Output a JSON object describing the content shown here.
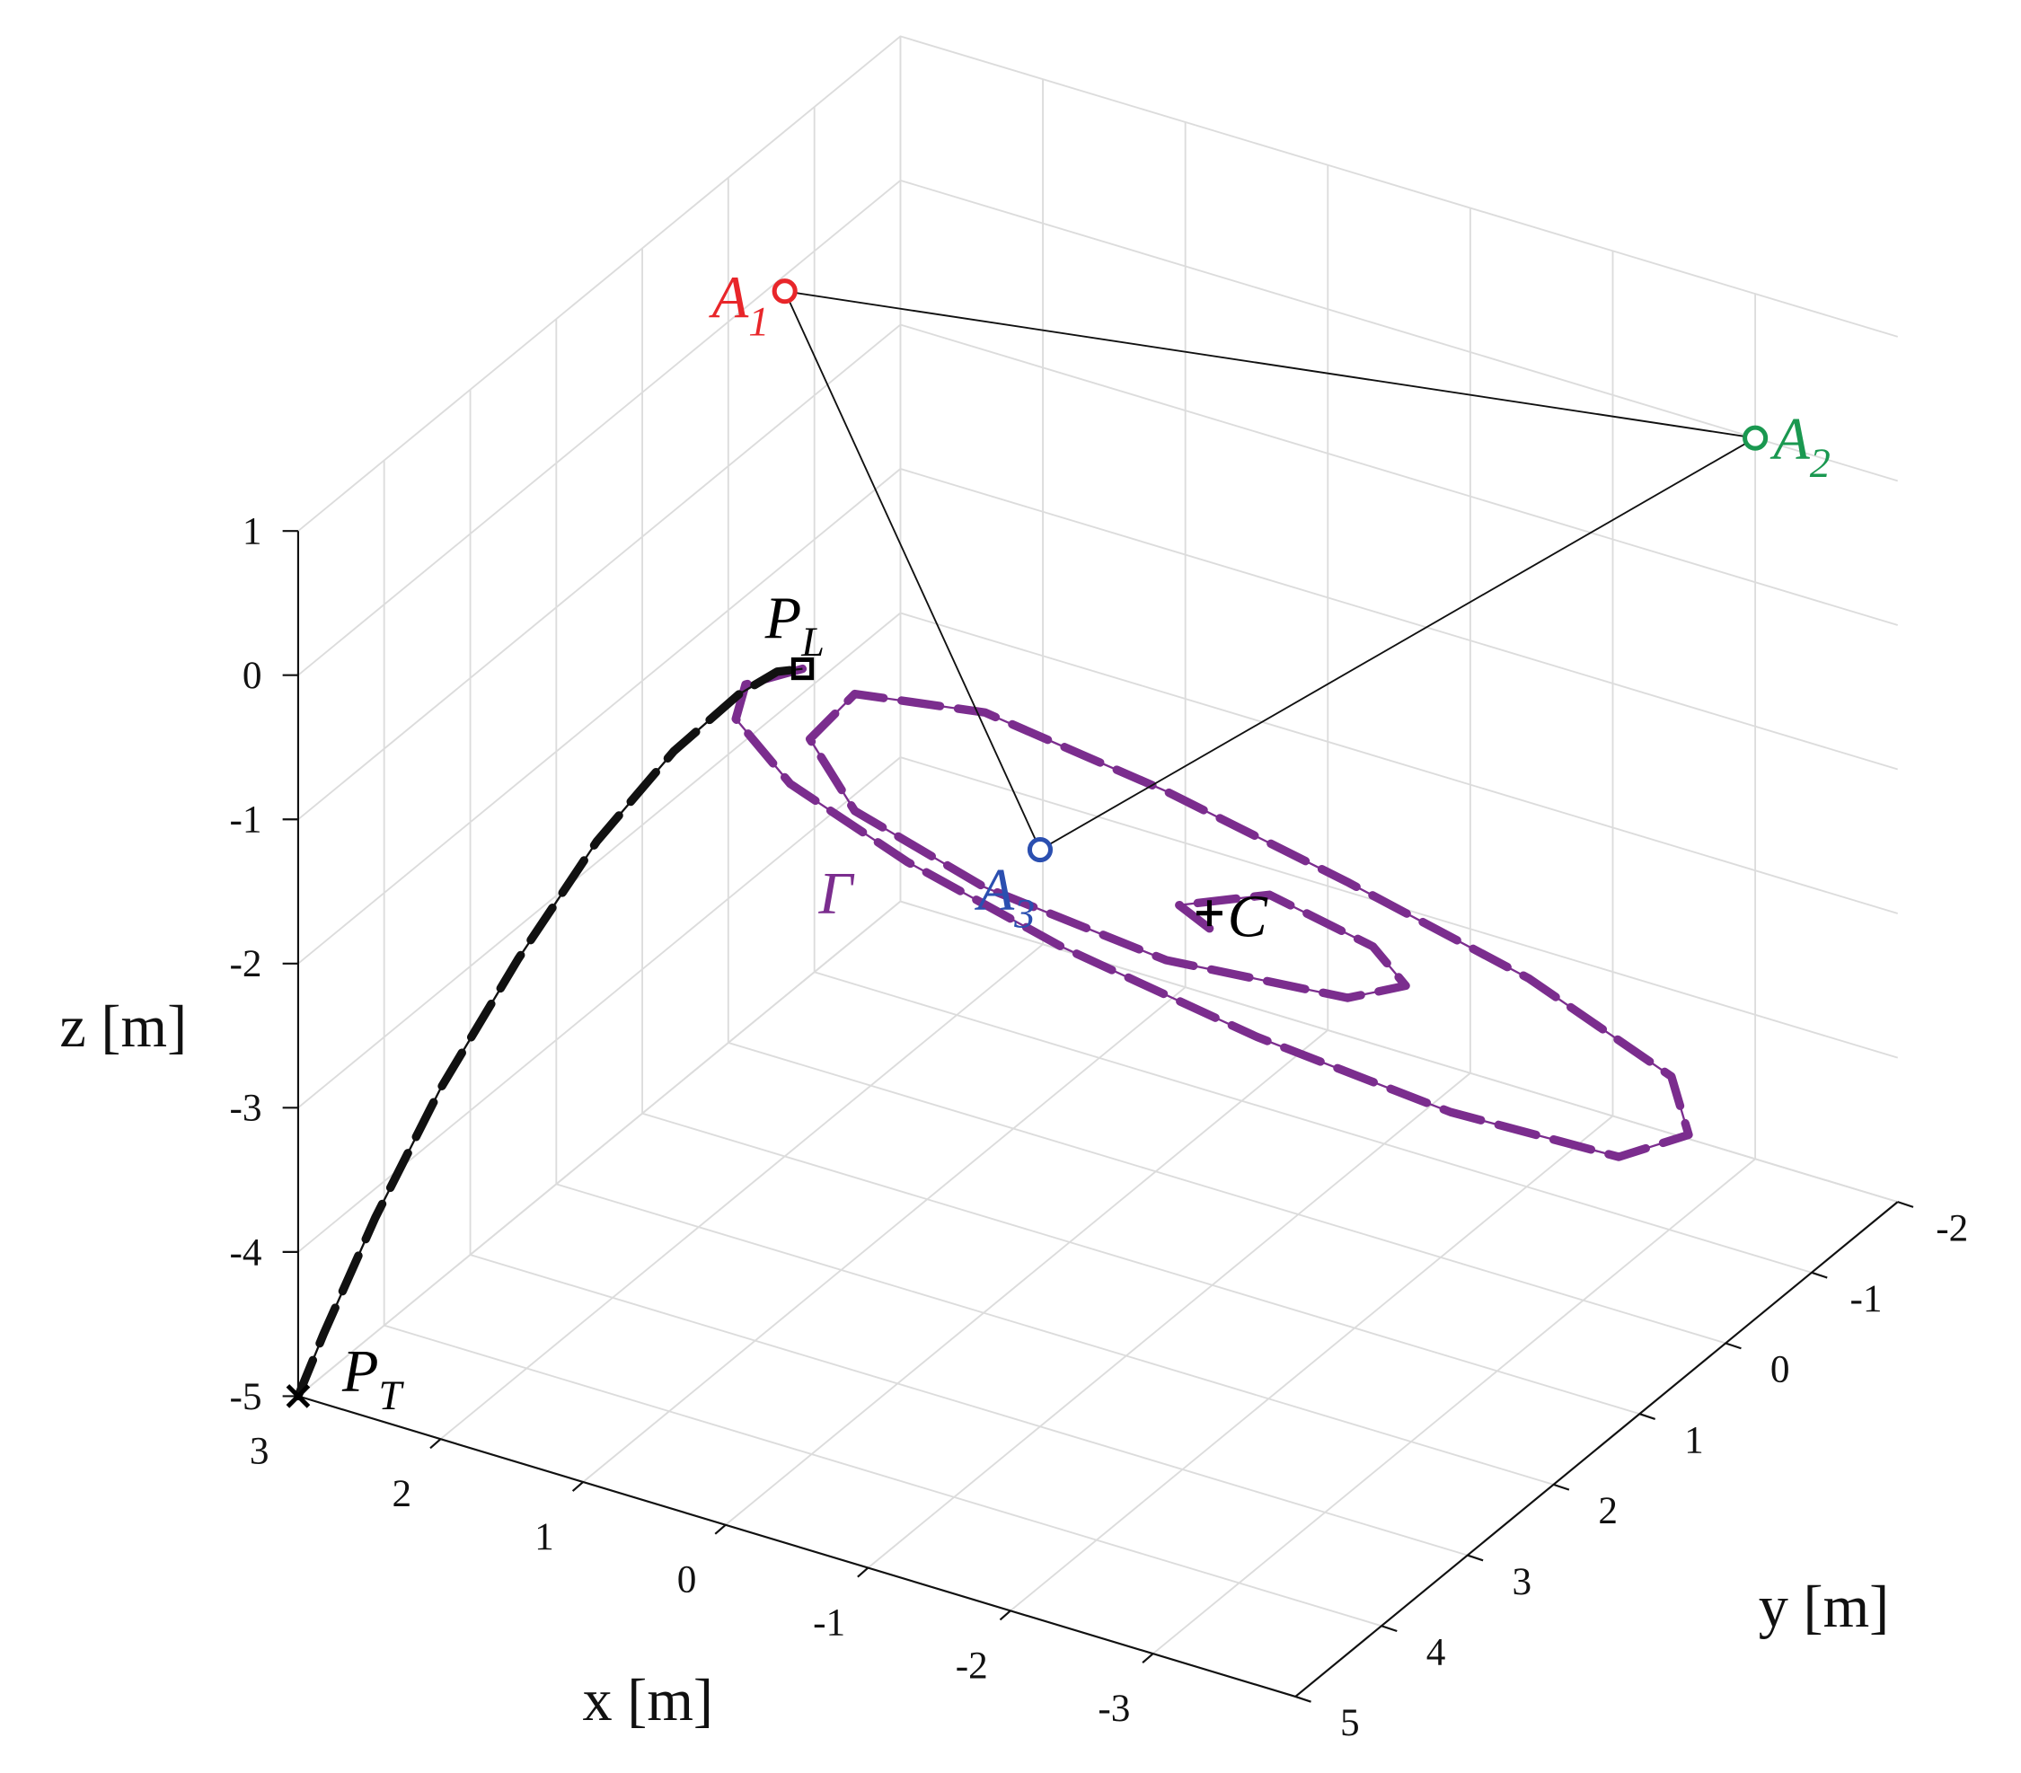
{
  "chart_data": {
    "type": "line3d",
    "xlabel": "x [m]",
    "ylabel": "y [m]",
    "zlabel": "z [m]",
    "xlim": [
      -4,
      3
    ],
    "ylim": [
      -2,
      5
    ],
    "zlim": [
      -5,
      1
    ],
    "xticks": [
      3,
      2,
      1,
      0,
      -1,
      -2,
      -3
    ],
    "yticks": [
      -2,
      -1,
      0,
      1,
      2,
      3,
      4,
      5
    ],
    "zticks": [
      -5,
      -4,
      -3,
      -2,
      -1,
      0,
      1
    ],
    "grid": true,
    "curve_label": "Γ",
    "series": [
      {
        "name": "Γ",
        "color": "#7b2d8e",
        "x": [
          0.45,
          0.41,
          0.2,
          -0.26,
          -0.87,
          -1.56,
          -2.33,
          -3.0,
          -3.45,
          -3.39,
          -3.01,
          -2.25,
          -1.45,
          -0.69,
          -0.02,
          0.24,
          0.0,
          -0.49,
          -1.11,
          -1.75,
          -2.18,
          -2.16,
          -1.88,
          -1.45,
          -1.42,
          -1.62
        ],
        "y": [
          3.36,
          4.09,
          4.55,
          4.68,
          4.33,
          3.67,
          2.68,
          1.54,
          0.33,
          -0.58,
          -1.01,
          -0.61,
          0.18,
          1.03,
          2.02,
          3.1,
          4.02,
          4.31,
          3.83,
          2.78,
          1.38,
          0.67,
          0.59,
          1.08,
          2.08,
          2.03
        ],
        "z": [
          0,
          0.26,
          0.31,
          0.06,
          -0.47,
          -1.18,
          -2.06,
          -2.94,
          -3.71,
          -4.02,
          -3.94,
          -3.29,
          -2.47,
          -1.65,
          -0.82,
          -0.24,
          -0.03,
          -0.24,
          -0.82,
          -1.65,
          -2.47,
          -2.74,
          -2.59,
          -2.12,
          -1.71,
          -1.85
        ]
      },
      {
        "color": "#111111",
        "x": [
          3,
          2.87,
          2.61,
          2.28,
          1.89,
          1.49,
          1.1,
          0.77,
          0.58,
          0.45
        ],
        "y": [
          5,
          4.92,
          4.75,
          4.54,
          4.28,
          4.03,
          3.78,
          3.57,
          3.44,
          3.36
        ],
        "z": [
          -5,
          -4.57,
          -3.77,
          -2.88,
          -1.99,
          -1.18,
          -0.56,
          -0.17,
          -0.02,
          0
        ]
      }
    ],
    "points": [
      {
        "label": "A",
        "sub": "1",
        "color": "#e8262a",
        "marker": "circle",
        "x": 2,
        "y": 1,
        "z": 1
      },
      {
        "label": "A",
        "sub": "2",
        "color": "#1a9850",
        "marker": "circle",
        "x": -3,
        "y": -2,
        "z": 0
      },
      {
        "label": "A",
        "sub": "3",
        "color": "#2b4fb0",
        "marker": "circle",
        "x": -1,
        "y": 3,
        "z": -1
      },
      {
        "label": "P",
        "sub": "L",
        "color": "#000000",
        "marker": "square",
        "x": 0.45,
        "y": 3.36,
        "z": 0
      },
      {
        "label": "P",
        "sub": "T",
        "color": "#000000",
        "marker": "x",
        "x": 3,
        "y": 5,
        "z": -5
      },
      {
        "label": "C",
        "color": "#000000",
        "marker": "plus",
        "x": -1.5,
        "y": 1.86,
        "z": -1.85
      }
    ]
  }
}
